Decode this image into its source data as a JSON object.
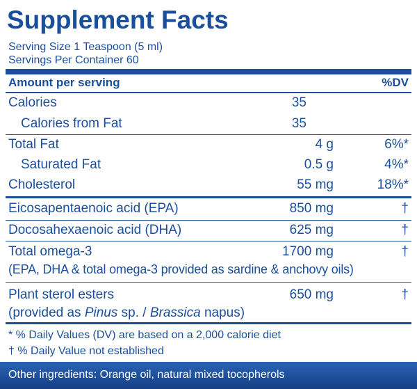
{
  "title": "Supplement Facts",
  "serving_size": "Serving Size 1 Teaspoon (5 ml)",
  "servings_per_container": "Servings Per Container 60",
  "header": {
    "amount": "Amount per serving",
    "dv": "%DV"
  },
  "rows": [
    {
      "name": "Calories",
      "amount": "35"
    },
    {
      "name": "Calories from Fat",
      "amount": "35"
    },
    {
      "name": "Total Fat",
      "amount": "4 g",
      "dv": "6%*"
    },
    {
      "name": "Saturated Fat",
      "amount": "0.5 g",
      "dv": "4%*"
    },
    {
      "name": "Cholesterol",
      "amount": "55 mg",
      "dv": "18%*"
    },
    {
      "name": "Eicosapentaenoic acid (EPA)",
      "amount": "850 mg",
      "dv": "†"
    },
    {
      "name": "Docosahexaenoic acid (DHA)",
      "amount": "625 mg",
      "dv": "†"
    },
    {
      "name": "Total omega-3",
      "amount": "1700 mg",
      "dv": "†",
      "note": "(EPA, DHA & total omega-3 provided as sardine & anchovy oils)"
    },
    {
      "name": "Plant sterol esters",
      "amount": "650 mg",
      "dv": "†",
      "note_parts": [
        "(provided as ",
        "Pinus",
        " sp. / ",
        "Brassica",
        " napus)"
      ]
    }
  ],
  "footnotes": [
    "* % Daily Values (DV) are based on a 2,000 calorie diet",
    "† % Daily Value not established"
  ],
  "other_ingredients": "Other ingredients: Orange oil, natural mixed tocopherols"
}
